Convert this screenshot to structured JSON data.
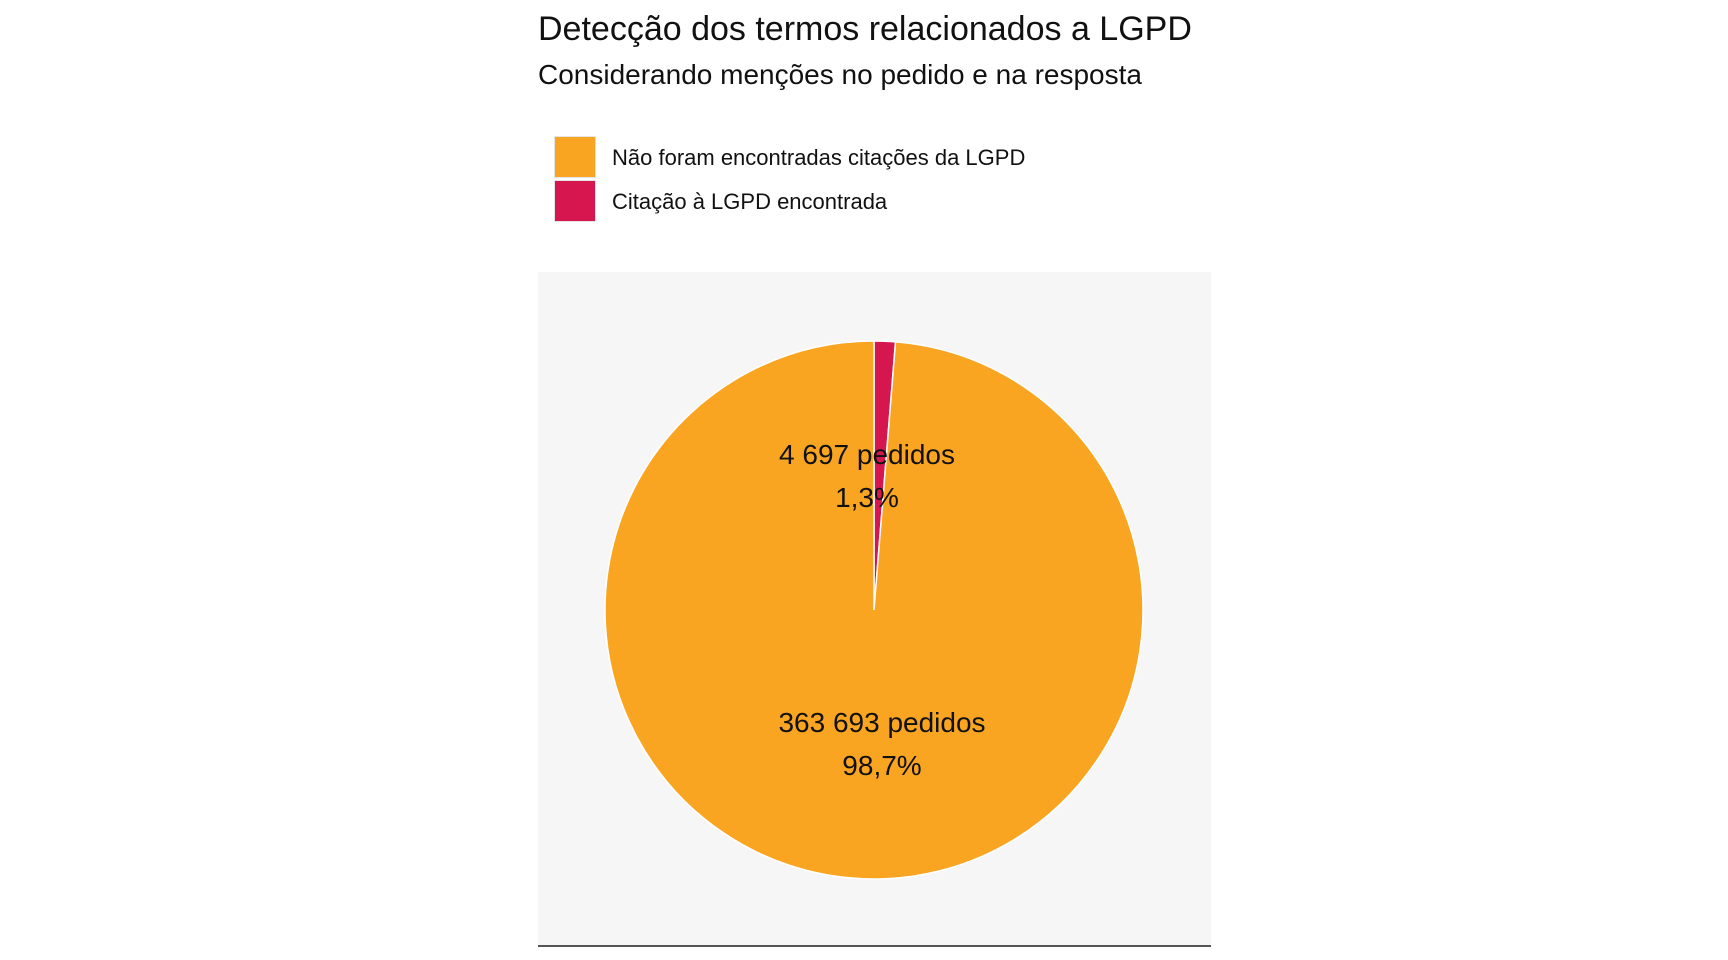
{
  "chart_data": {
    "type": "pie",
    "title": "Detecção dos termos relacionados a LGPD",
    "subtitle": "Considerando menções no pedido e na resposta",
    "legend_position": "top-left",
    "slices": [
      {
        "name": "Citação à LGPD encontrada",
        "value": 4697,
        "count_label": "4 697 pedidos",
        "percent_label": "1,3%",
        "percent": 1.3,
        "color": "#d6174f"
      },
      {
        "name": "Não foram encontradas citações da LGPD",
        "value": 363693,
        "count_label": "363 693 pedidos",
        "percent_label": "98,7%",
        "percent": 98.7,
        "color": "#f9a521"
      }
    ]
  },
  "legend": [
    {
      "label": "Não foram encontradas citações da LGPD",
      "color": "#f9a521"
    },
    {
      "label": "Citação à LGPD encontrada",
      "color": "#d6174f"
    }
  ],
  "colors": {
    "panel_background": "#f6f6f6",
    "slice_border": "#ffffff"
  }
}
